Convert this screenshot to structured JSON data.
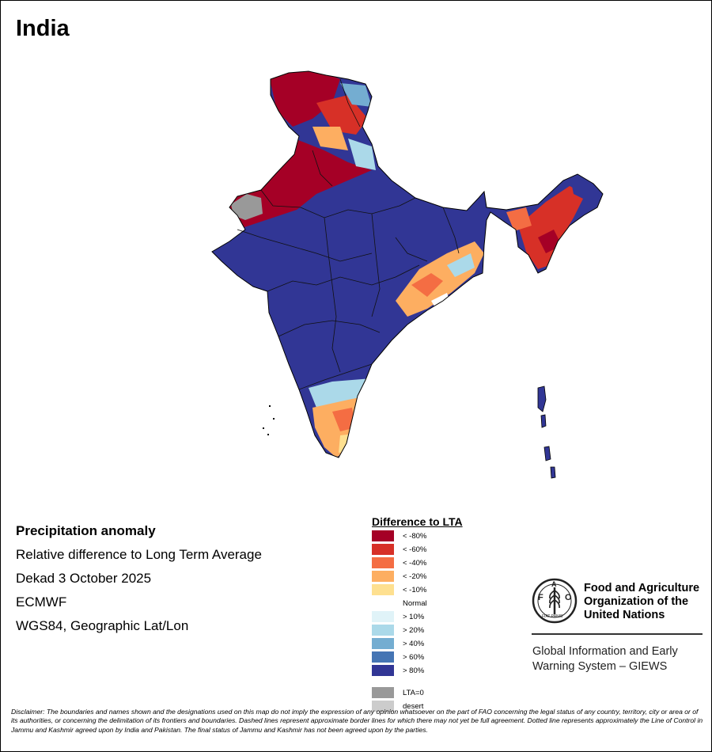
{
  "title": "India",
  "info": {
    "heading": "Precipitation anomaly",
    "line1": "Relative difference to Long Term Average",
    "line2": "Dekad 3 October 2025",
    "line3": "ECMWF",
    "line4": "WGS84, Geographic Lat/Lon"
  },
  "legend": {
    "title": "Difference to LTA",
    "items": [
      {
        "label": "< -80%",
        "color": "#a50026"
      },
      {
        "label": "< -60%",
        "color": "#d73027"
      },
      {
        "label": "< -40%",
        "color": "#f46d43"
      },
      {
        "label": "< -20%",
        "color": "#fdae61"
      },
      {
        "label": "< -10%",
        "color": "#fee090"
      },
      {
        "label": "Normal",
        "color": "#ffffff"
      },
      {
        "label": "> 10%",
        "color": "#e0f3f8"
      },
      {
        "label": "> 20%",
        "color": "#abd9e9"
      },
      {
        "label": "> 40%",
        "color": "#74add1"
      },
      {
        "label": "> 60%",
        "color": "#4575b4"
      },
      {
        "label": "> 80%",
        "color": "#313695"
      },
      {
        "label": "LTA=0",
        "color": "#999999"
      },
      {
        "label": "desert",
        "color": "#cccccc"
      }
    ]
  },
  "logo": {
    "org_name": "Food and Agriculture Organization of the United Nations",
    "emblem_text": "FAO",
    "motto": "FIAT PANIS",
    "system_name": "Global Information and Early Warning System – GIEWS"
  },
  "disclaimer": "Disclaimer: The boundaries and names shown and the designations used on this map do not imply the expression of any opinion whatsoever on the part of FAO concerning the legal status of any country, territory, city or area or of its authorities, or concerning the delimitation of its frontiers and boundaries. Dashed lines represent approximate border lines for which there may not yet be full agreement. Dotted line represents approximately the Line of Control in Jammu and Kashmir agreed upon by India and Pakistan. The final status of Jammu and Kashmir has not been agreed upon by the parties.",
  "colors": {
    "deficit_strong": "#a50026",
    "deficit": "#d73027",
    "surplus_strong": "#313695",
    "lta_zero": "#999999"
  }
}
